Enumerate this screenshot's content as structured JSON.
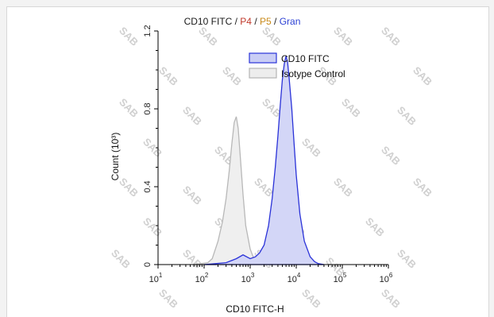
{
  "watermark_text": "SAB",
  "chart_data": {
    "type": "area",
    "title": {
      "parts": [
        {
          "text": "CD10 FITC",
          "color": "#1a1a1a"
        },
        {
          "text": " / ",
          "color": "#1a1a1a"
        },
        {
          "text": "P4",
          "color": "#c0392b"
        },
        {
          "text": " / ",
          "color": "#1a1a1a"
        },
        {
          "text": "P5",
          "color": "#c98a1a"
        },
        {
          "text": " / ",
          "color": "#1a1a1a"
        },
        {
          "text": "Gran",
          "color": "#2a3fd4"
        }
      ]
    },
    "xlabel": "CD10 FITC-H",
    "ylabel": "Count (10³)",
    "xscale": "log",
    "xlim": [
      10,
      1000000
    ],
    "ylim": [
      0,
      1.2
    ],
    "x_ticks": [
      {
        "value": 10,
        "base": "10",
        "exp": "1"
      },
      {
        "value": 100,
        "base": "10",
        "exp": "2"
      },
      {
        "value": 1000,
        "base": "10",
        "exp": "3"
      },
      {
        "value": 10000,
        "base": "10",
        "exp": "4"
      },
      {
        "value": 100000,
        "base": "10",
        "exp": "5"
      },
      {
        "value": 1000000,
        "base": "10",
        "exp": "6"
      }
    ],
    "y_ticks": [
      {
        "value": 0,
        "label": "0"
      },
      {
        "value": 0.4,
        "label": "0.4"
      },
      {
        "value": 0.8,
        "label": "0.8"
      },
      {
        "value": 1.2,
        "label": "1.2"
      }
    ],
    "legend": {
      "placement": "top-right",
      "entries": [
        {
          "label": "CD10 FITC",
          "fill": "#c9cdf5",
          "stroke": "#2a32d8"
        },
        {
          "label": "Isotype Control",
          "fill": "#ededed",
          "stroke": "#b5b5b5"
        }
      ]
    },
    "series": [
      {
        "name": "Isotype Control",
        "fill": "#efefef",
        "stroke": "#b8b8b8",
        "x": [
          60,
          120,
          150,
          200,
          250,
          300,
          350,
          400,
          450,
          500,
          550,
          600,
          700,
          800,
          1000,
          1200,
          1500,
          2000,
          3000
        ],
        "y": [
          0,
          0.01,
          0.03,
          0.12,
          0.22,
          0.34,
          0.48,
          0.62,
          0.73,
          0.76,
          0.7,
          0.58,
          0.36,
          0.2,
          0.08,
          0.03,
          0.01,
          0,
          0
        ]
      },
      {
        "name": "CD10 FITC",
        "fill": "#d3d6f7",
        "stroke": "#2a32d8",
        "x": [
          100,
          300,
          500,
          700,
          1000,
          1300,
          1600,
          2000,
          2500,
          3000,
          3500,
          4000,
          4500,
          5000,
          5500,
          6000,
          6500,
          7000,
          8000,
          9000,
          10000,
          12000,
          15000,
          20000,
          25000,
          30000,
          40000
        ],
        "y": [
          0,
          0.01,
          0.03,
          0.05,
          0.03,
          0.04,
          0.06,
          0.1,
          0.2,
          0.34,
          0.5,
          0.66,
          0.82,
          0.95,
          1.03,
          1.07,
          1.04,
          0.96,
          0.8,
          0.62,
          0.46,
          0.26,
          0.12,
          0.04,
          0.015,
          0.005,
          0
        ]
      }
    ]
  }
}
